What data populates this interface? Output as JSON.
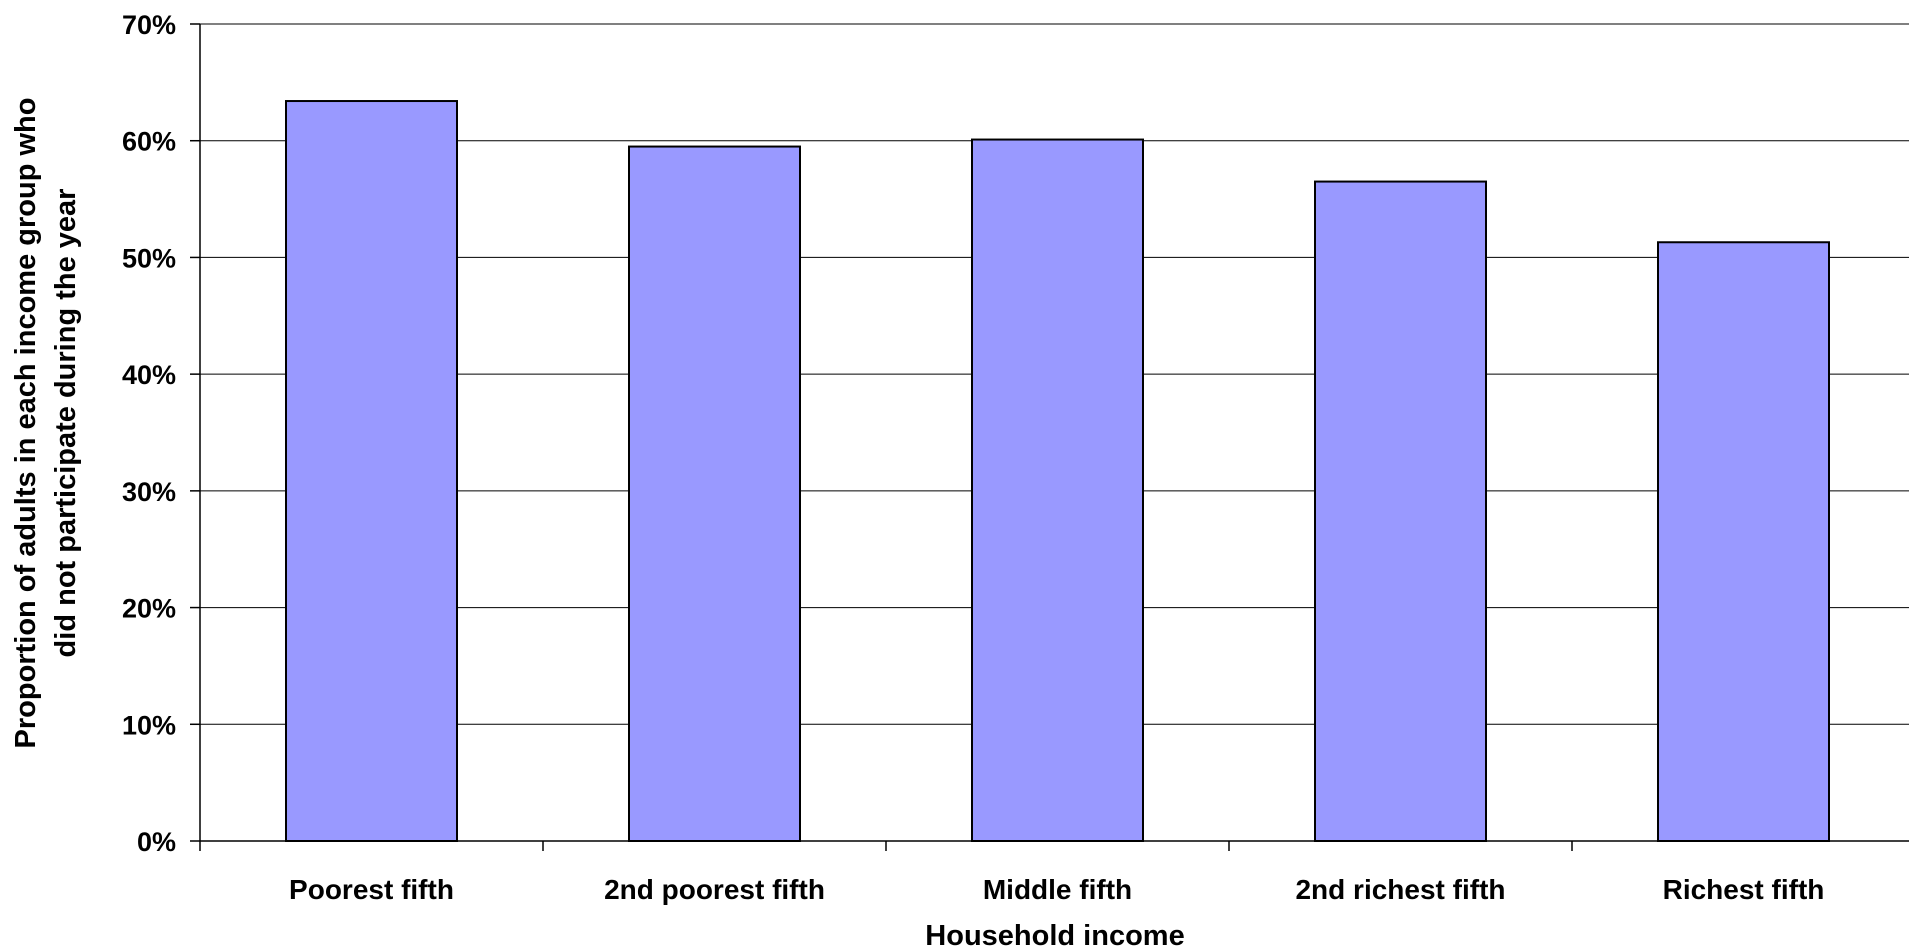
{
  "chart_data": {
    "type": "bar",
    "title": "",
    "xlabel": "Household income",
    "ylabel_lines": [
      "Proportion of adults in each income group who",
      "did not participate during the year"
    ],
    "categories": [
      "Poorest fifth",
      "2nd poorest fifth",
      "Middle fifth",
      "2nd richest fifth",
      "Richest fifth"
    ],
    "values": [
      63.4,
      59.5,
      60.1,
      56.5,
      51.3
    ],
    "ylim": [
      0,
      70
    ],
    "yticks": [
      0,
      10,
      20,
      30,
      40,
      50,
      60,
      70
    ],
    "ytick_format": "{v}%",
    "grid": true,
    "legend": "none",
    "bar_color": "#9999ff",
    "bar_edge_color": "#000000"
  }
}
